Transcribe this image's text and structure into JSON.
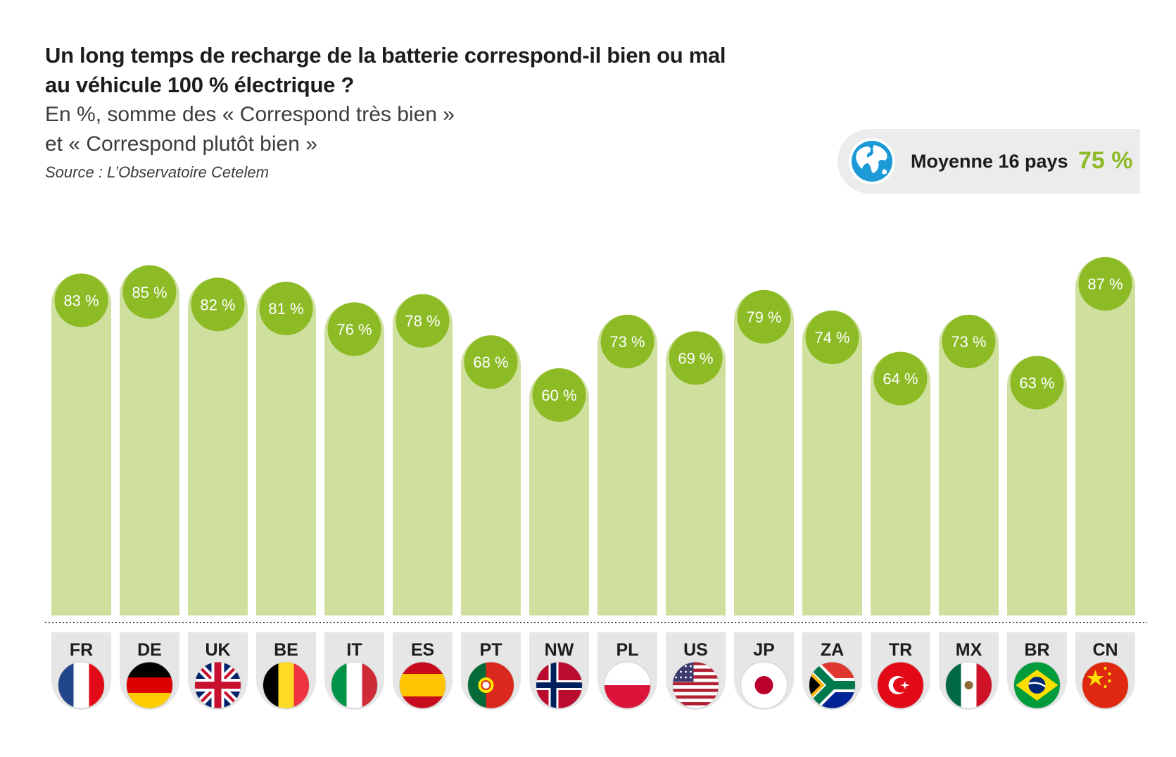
{
  "header": {
    "title": "Un long temps de recharge de la batterie correspond-il bien ou mal au véhicule 100 % électrique ?",
    "subtitle_line1": "En %, somme des « Correspond très bien »",
    "subtitle_line2": "et « Correspond plutôt bien »",
    "source": "Source : L’Observatoire Cetelem"
  },
  "average": {
    "label": "Moyenne 16 pays",
    "value": "75 %",
    "icon": "globe-icon"
  },
  "colors": {
    "bar": "#cfdf9d",
    "badge": "#8cbb26",
    "accent": "#8cbb26",
    "flag_bg": "#e6e6e6"
  },
  "chart_data": {
    "type": "bar",
    "title": "Un long temps de recharge de la batterie correspond-il bien ou mal au véhicule 100 % électrique ?",
    "ylabel": "En %",
    "ylim": [
      0,
      100
    ],
    "categories": [
      "FR",
      "DE",
      "UK",
      "BE",
      "IT",
      "ES",
      "PT",
      "NW",
      "PL",
      "US",
      "JP",
      "ZA",
      "TR",
      "MX",
      "BR",
      "CN"
    ],
    "values": [
      83,
      85,
      82,
      81,
      76,
      78,
      68,
      60,
      73,
      69,
      79,
      74,
      64,
      73,
      63,
      87
    ],
    "data_labels": [
      "83 %",
      "85 %",
      "82 %",
      "81 %",
      "76 %",
      "78 %",
      "68 %",
      "60 %",
      "73 %",
      "69 %",
      "79 %",
      "74 %",
      "64 %",
      "73 %",
      "63 %",
      "87 %"
    ],
    "flags": [
      "flag-france",
      "flag-germany",
      "flag-uk",
      "flag-belgium",
      "flag-italy",
      "flag-spain",
      "flag-portugal",
      "flag-norway",
      "flag-poland",
      "flag-usa",
      "flag-japan",
      "flag-south-africa",
      "flag-turkey",
      "flag-mexico",
      "flag-brazil",
      "flag-china"
    ]
  }
}
